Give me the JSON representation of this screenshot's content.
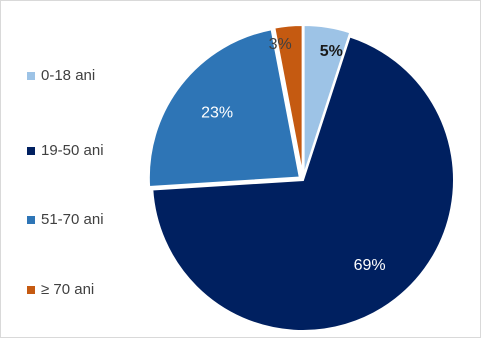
{
  "chart_data": {
    "type": "pie",
    "categories": [
      "0-18 ani",
      "19-50 ani",
      "51-70 ani",
      "≥ 70 ani"
    ],
    "values": [
      5,
      69,
      23,
      3
    ],
    "labels": [
      "5%",
      "69%",
      "23%",
      "3%"
    ],
    "colors": [
      "#9dc3e6",
      "#002060",
      "#2e75b6",
      "#c55a11"
    ],
    "label_colors": [
      "#1a1a1a",
      "#ffffff",
      "#ffffff",
      "#404040"
    ],
    "legend_position": "left",
    "title": ""
  }
}
